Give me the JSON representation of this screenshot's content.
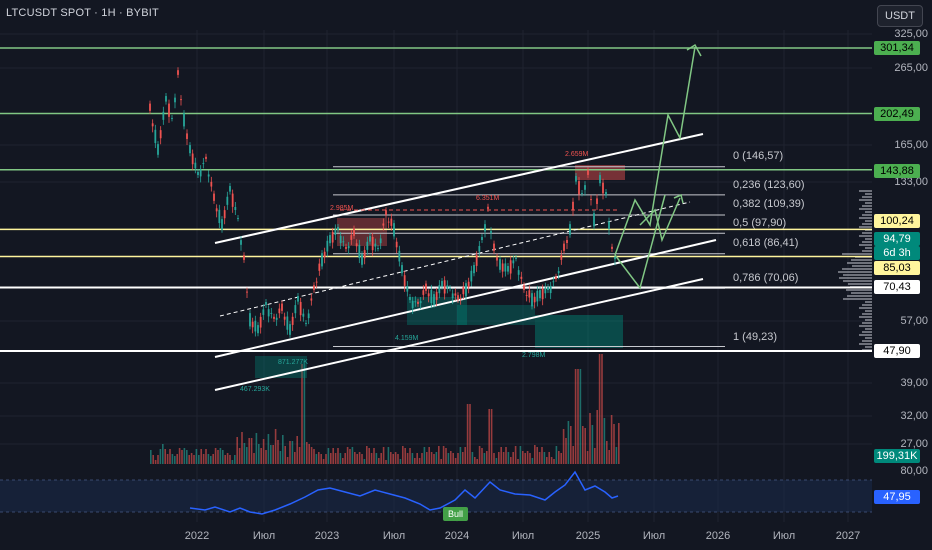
{
  "header": {
    "symbol": "LTCUSDT SPOT · 1H · BYBIT",
    "currency_button": "USDT"
  },
  "price_axis": {
    "labels": [
      "325,00",
      "265,00",
      "165,00",
      "133,00",
      "57,00",
      "39,00",
      "32,00",
      "27,00"
    ]
  },
  "price_tags": [
    {
      "label": "301,34",
      "bg": "#4caf50",
      "fg": "#000000"
    },
    {
      "label": "202,49",
      "bg": "#4caf50",
      "fg": "#000000"
    },
    {
      "label": "143,88",
      "bg": "#4caf50",
      "fg": "#000000"
    },
    {
      "label": "100,24",
      "bg": "#fff59d",
      "fg": "#000000"
    },
    {
      "label": "94,79",
      "bg": "#00897b",
      "fg": "#ffffff"
    },
    {
      "label": "6d 3h",
      "bg": "#00897b",
      "fg": "#ffffff"
    },
    {
      "label": "85,03",
      "bg": "#fff59d",
      "fg": "#000000"
    },
    {
      "label": "70,43",
      "bg": "#ffffff",
      "fg": "#000000"
    },
    {
      "label": "47,90",
      "bg": "#ffffff",
      "fg": "#000000"
    }
  ],
  "fib_levels": [
    "0 (146,57)",
    "0,236 (123,60)",
    "0,382 (109,39)",
    "0,5 (97,90)",
    "0,618 (86,41)",
    "0,786 (70,06)",
    "1 (49,23)"
  ],
  "volume_tag": "199,31K",
  "rsi": {
    "axis_top": "80,00",
    "value_tag": "47,95",
    "bull_label": "Bull"
  },
  "time_axis": [
    "2022",
    "Июл",
    "2023",
    "Июл",
    "2024",
    "Июл",
    "2025",
    "Июл",
    "2026",
    "Июл",
    "2027"
  ],
  "annotations": [
    "2.659M",
    "2.985M",
    "6.351M",
    "871.277K",
    "467.293K",
    "4.159M",
    "2.798M"
  ],
  "chart_data": {
    "type": "candlestick",
    "symbol": "LTCUSDT",
    "interval": "1H",
    "exchange": "BYBIT",
    "y_scale": "log",
    "horizontal_levels": [
      301.34,
      202.49,
      143.88,
      100.24,
      85.03,
      70.43,
      47.9
    ],
    "fibonacci": [
      {
        "ratio": 0,
        "price": 146.57
      },
      {
        "ratio": 0.236,
        "price": 123.6
      },
      {
        "ratio": 0.382,
        "price": 109.39
      },
      {
        "ratio": 0.5,
        "price": 97.9
      },
      {
        "ratio": 0.618,
        "price": 86.41
      },
      {
        "ratio": 0.786,
        "price": 70.06
      },
      {
        "ratio": 1,
        "price": 49.23
      }
    ],
    "last_price": 94.79,
    "volume_last": "199,31K",
    "rsi_last": 47.95,
    "colors": {
      "up": "#26a69a",
      "down": "#ef5350",
      "level_green": "#81c784",
      "level_yellow": "#fff59d",
      "rsi": "#2962ff"
    }
  }
}
